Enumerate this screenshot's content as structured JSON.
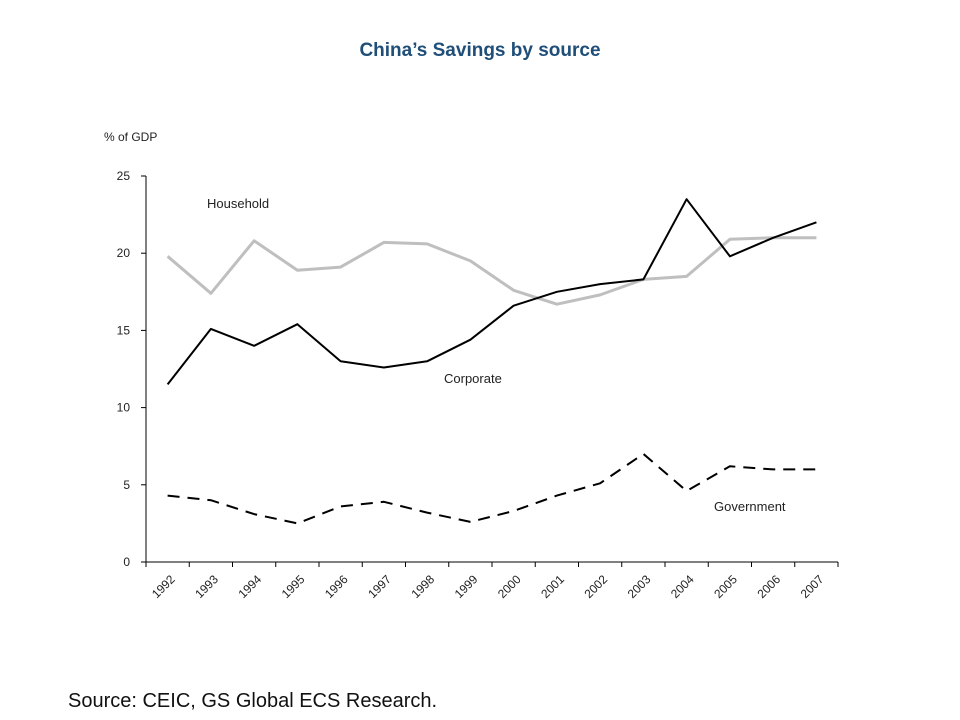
{
  "chart_data": {
    "type": "line",
    "title": "China’s Savings by source",
    "ylabel": "% of GDP",
    "xlabel": "",
    "categories": [
      "1992",
      "1993",
      "1994",
      "1995",
      "1996",
      "1997",
      "1998",
      "1999",
      "2000",
      "2001",
      "2002",
      "2003",
      "2004",
      "2005",
      "2006",
      "2007"
    ],
    "yticks": [
      0,
      5,
      10,
      15,
      20,
      25
    ],
    "ylim": [
      0,
      25
    ],
    "grid": false,
    "series": [
      {
        "name": "Household",
        "color": "#bfbfbf",
        "style": "solid",
        "values": [
          19.8,
          17.4,
          20.8,
          18.9,
          19.1,
          20.7,
          20.6,
          19.5,
          17.6,
          16.7,
          17.3,
          18.3,
          18.5,
          20.9,
          21.0,
          21.0
        ]
      },
      {
        "name": "Corporate",
        "color": "#000000",
        "style": "solid",
        "values": [
          11.5,
          15.1,
          14.0,
          15.4,
          13.0,
          12.6,
          13.0,
          14.4,
          16.6,
          17.5,
          18.0,
          18.3,
          23.5,
          19.8,
          21.0,
          22.0
        ]
      },
      {
        "name": "Government",
        "color": "#000000",
        "style": "dashed",
        "values": [
          4.3,
          4.0,
          3.1,
          2.5,
          3.6,
          3.9,
          3.2,
          2.6,
          3.3,
          4.3,
          5.1,
          7.0,
          4.6,
          6.2,
          6.0,
          6.0
        ]
      }
    ]
  },
  "source": "Source: CEIC, GS Global ECS Research."
}
